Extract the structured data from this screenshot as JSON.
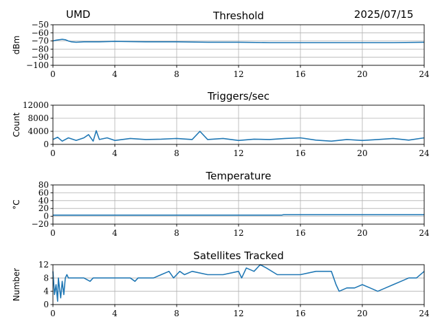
{
  "header": {
    "left": "UMD",
    "right": "2025/07/15"
  },
  "style": {
    "line_color": "#1f77b4",
    "grid_color": "#b0b0b0"
  },
  "chart_data": [
    {
      "type": "line",
      "title": "Threshold",
      "xlabel": "",
      "ylabel": "dBm",
      "xlim": [
        0,
        24
      ],
      "ylim": [
        -100,
        -50
      ],
      "xticks": [
        "0",
        "4",
        "8",
        "12",
        "16",
        "20",
        "24"
      ],
      "yticks": [
        "−50",
        "−60",
        "−70",
        "−80",
        "−90",
        "−100"
      ],
      "ytick_values": [
        -50,
        -60,
        -70,
        -80,
        -90,
        -100
      ],
      "grid": true,
      "series": [
        {
          "x": [
            0,
            0.2,
            0.4,
            0.6,
            0.8,
            1.0,
            1.2,
            1.5,
            2,
            3,
            4,
            6,
            8,
            10,
            12,
            14,
            16,
            18,
            20,
            22,
            24
          ],
          "y": [
            -70,
            -69,
            -68.5,
            -68,
            -68.5,
            -70,
            -71,
            -71.5,
            -71,
            -71,
            -70.5,
            -71,
            -71,
            -71.5,
            -71.5,
            -72,
            -72,
            -72,
            -72,
            -72,
            -71.5
          ]
        }
      ]
    },
    {
      "type": "line",
      "title": "Triggers/sec",
      "xlabel": "",
      "ylabel": "Count",
      "xlim": [
        0,
        24
      ],
      "ylim": [
        0,
        12000
      ],
      "xticks": [
        "0",
        "4",
        "8",
        "12",
        "16",
        "20",
        "24"
      ],
      "yticks": [
        "0",
        "4000",
        "8000",
        "12000"
      ],
      "ytick_values": [
        0,
        4000,
        8000,
        12000
      ],
      "grid": true,
      "series": [
        {
          "x": [
            0,
            0.3,
            0.6,
            1,
            1.5,
            2,
            2.3,
            2.6,
            2.8,
            3,
            3.5,
            4,
            5,
            6,
            7,
            8,
            9,
            9.5,
            10,
            11,
            12,
            13,
            14,
            15,
            16,
            17,
            18,
            19,
            20,
            21,
            22,
            23,
            24
          ],
          "y": [
            1500,
            2200,
            1000,
            2000,
            1200,
            2000,
            3000,
            1000,
            4200,
            1500,
            2000,
            1200,
            1800,
            1500,
            1600,
            1800,
            1500,
            4000,
            1500,
            1800,
            1200,
            1600,
            1500,
            1800,
            2000,
            1300,
            1000,
            1500,
            1200,
            1500,
            1800,
            1300,
            2000
          ]
        }
      ]
    },
    {
      "type": "line",
      "title": "Temperature",
      "xlabel": "",
      "ylabel": "°C",
      "xlim": [
        0,
        24
      ],
      "ylim": [
        -20,
        80
      ],
      "xticks": [
        "0",
        "4",
        "8",
        "12",
        "16",
        "20",
        "24"
      ],
      "yticks": [
        "80",
        "60",
        "40",
        "20",
        "0",
        "−20"
      ],
      "ytick_values": [
        80,
        60,
        40,
        20,
        0,
        -20
      ],
      "grid": true,
      "series": [
        {
          "x": [
            0,
            4,
            8,
            12,
            14.8,
            14.9,
            16,
            20,
            24
          ],
          "y": [
            3,
            3,
            3,
            3,
            3,
            4,
            4,
            4,
            4
          ]
        }
      ]
    },
    {
      "type": "line",
      "title": "Satellites Tracked",
      "xlabel": "",
      "ylabel": "Number",
      "xlim": [
        0,
        24
      ],
      "ylim": [
        0,
        12
      ],
      "xticks": [
        "0",
        "4",
        "8",
        "12",
        "16",
        "20",
        "24"
      ],
      "yticks": [
        "12",
        "8",
        "4",
        "0"
      ],
      "ytick_values": [
        12,
        8,
        4,
        0
      ],
      "grid": true,
      "series": [
        {
          "x": [
            0,
            0.1,
            0.2,
            0.3,
            0.35,
            0.45,
            0.5,
            0.6,
            0.7,
            0.8,
            0.9,
            1.0,
            1.2,
            1.5,
            2.0,
            2.4,
            2.6,
            3.0,
            3.5,
            4.0,
            4.5,
            5.0,
            5.3,
            5.5,
            6.0,
            6.5,
            7.0,
            7.5,
            7.8,
            8.0,
            8.2,
            8.5,
            9.0,
            10,
            11,
            12,
            12.2,
            12.5,
            13,
            13.4,
            13.8,
            14.5,
            15,
            16,
            17,
            18,
            18.3,
            18.5,
            19,
            19.5,
            20,
            20.5,
            21,
            21.5,
            22,
            22.5,
            23,
            23.5,
            24
          ],
          "y": [
            10,
            3,
            6,
            1,
            8,
            4,
            2,
            7,
            3,
            8,
            9,
            8,
            8,
            8,
            8,
            7,
            8,
            8,
            8,
            8,
            8,
            8,
            7,
            8,
            8,
            8,
            9,
            10,
            8,
            9,
            10,
            9,
            10,
            9,
            9,
            10,
            8,
            11,
            10,
            12,
            11,
            9,
            9,
            9,
            10,
            10,
            6,
            4,
            5,
            5,
            6,
            5,
            4,
            5,
            6,
            7,
            8,
            8,
            10
          ]
        }
      ]
    }
  ]
}
